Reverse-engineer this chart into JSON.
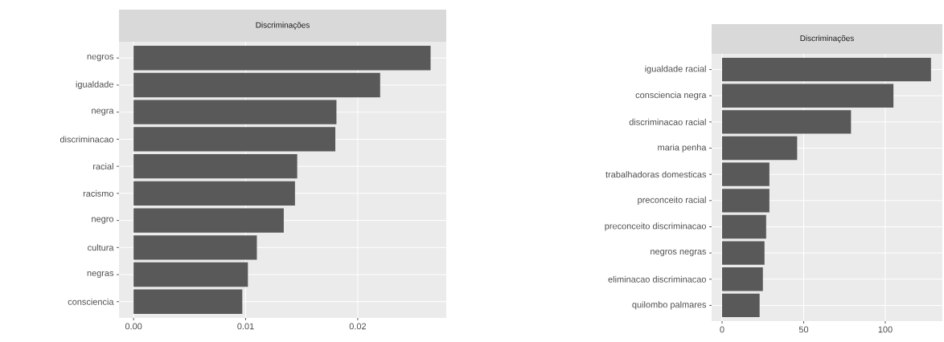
{
  "chart_data": [
    {
      "type": "bar",
      "orientation": "horizontal",
      "title": "Discriminações",
      "color": "#595959",
      "grid": true,
      "categories": [
        "negros",
        "igualdade",
        "negra",
        "discriminacao",
        "racial",
        "racismo",
        "negro",
        "cultura",
        "negras",
        "consciencia"
      ],
      "values": [
        0.0265,
        0.022,
        0.0181,
        0.018,
        0.0146,
        0.0144,
        0.0134,
        0.011,
        0.0102,
        0.0097
      ],
      "xlim": [
        -0.0013,
        0.0279
      ],
      "xticks": [
        {
          "value": 0,
          "label": "0.00"
        },
        {
          "value": 0.01,
          "label": "0.01"
        },
        {
          "value": 0.02,
          "label": "0.02"
        }
      ]
    },
    {
      "type": "bar",
      "orientation": "horizontal",
      "title": "Discriminações",
      "color": "#595959",
      "grid": true,
      "categories": [
        "igualdade racial",
        "consciencia negra",
        "discriminacao racial",
        "maria penha",
        "trabalhadoras domesticas",
        "preconceito racial",
        "preconceito discriminacao",
        "negros negras",
        "eliminacao discriminacao",
        "quilombo palmares"
      ],
      "values": [
        128,
        105,
        79,
        46,
        29,
        29,
        27,
        26,
        25,
        23
      ],
      "xlim": [
        -6.4,
        135
      ],
      "xticks": [
        0,
        50,
        100
      ]
    }
  ]
}
